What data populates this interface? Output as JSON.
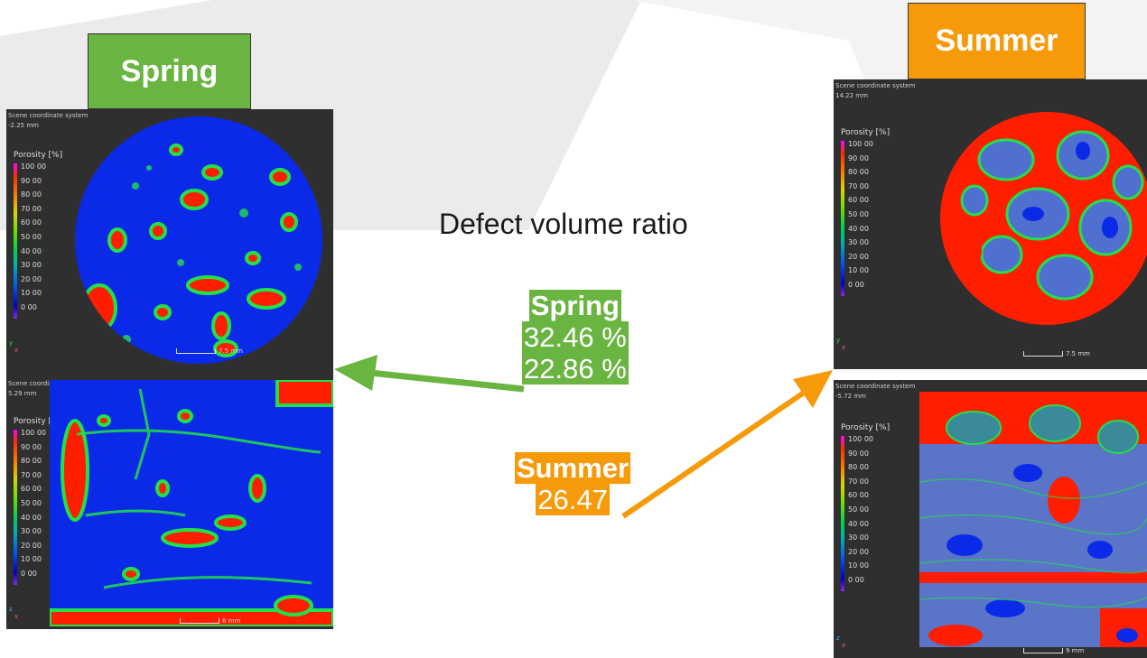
{
  "title": "Defect volume ratio",
  "colors": {
    "spring": "#6ab541",
    "summer": "#f79a0a",
    "panel": "#2f2f2f",
    "pore": "#ff1e00",
    "matrix": "#0a2ae8",
    "edge": "#22e04a"
  },
  "spring": {
    "header": "Spring",
    "stat_label": "Spring",
    "values": [
      "32.46 %",
      "22.86 %"
    ]
  },
  "summer": {
    "header": "Summer",
    "stat_label": "Summer",
    "values": [
      "26.47"
    ]
  },
  "legend": {
    "title": "Porosity [%]",
    "ticks": [
      "100 00",
      "90 00",
      "80 00",
      "70 00",
      "60 00",
      "50 00",
      "40 00",
      "30 00",
      "20 00",
      "10 00",
      "0 00"
    ]
  },
  "panels": {
    "spring_top": {
      "line1": "Scene coordinate system",
      "line2": "-2.25 mm",
      "scale": "7.5 mm",
      "axes": [
        "y",
        "x"
      ]
    },
    "spring_bottom": {
      "line1": "Scene coordinate system",
      "line2": "5.29 mm",
      "scale": "6 mm",
      "axes": [
        "z",
        "x"
      ]
    },
    "summer_top": {
      "line1": "Scene coordinate system",
      "line2": "14.22 mm",
      "scale": "7.5 mm",
      "axes": [
        "y",
        "x"
      ]
    },
    "summer_bottom": {
      "line1": "Scene coordinate system",
      "line2": "-5.72 mm",
      "scale": "9 mm",
      "axes": [
        "z",
        "x"
      ]
    }
  }
}
